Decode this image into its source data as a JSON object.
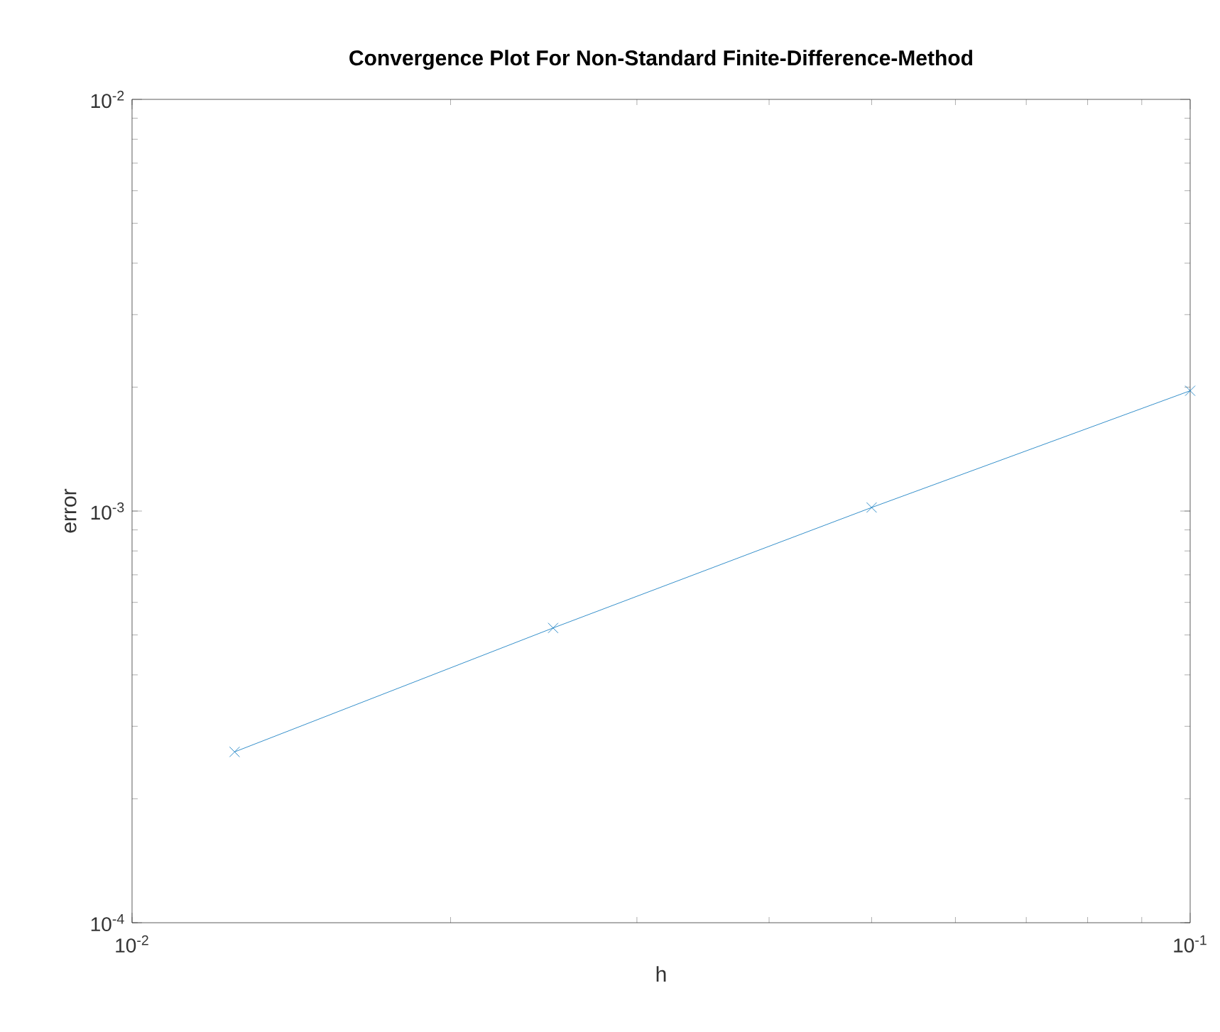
{
  "chart_data": {
    "type": "line",
    "title": "Convergence Plot For Non-Standard Finite-Difference-Method",
    "xlabel": "h",
    "ylabel": "error",
    "x": [
      0.0125,
      0.025,
      0.05,
      0.1
    ],
    "series": [
      {
        "color": "#0072bd",
        "values": [
          0.00026,
          0.00052,
          0.00102,
          0.00196
        ]
      }
    ],
    "log": "xy",
    "marker": "cross",
    "line_style": "solid",
    "xlim": [
      0.01,
      0.1
    ],
    "ylim": [
      0.0001,
      0.01
    ],
    "xticks": [
      {
        "value": 0.01,
        "label": "10$^{-2}$"
      },
      {
        "value": 0.1,
        "label": "10$^{-1}$"
      }
    ],
    "yticks": [
      {
        "value": 0.0001,
        "label": "10$^{-4}$"
      },
      {
        "value": 0.001,
        "label": "10$^{-3}$"
      },
      {
        "value": 0.01,
        "label": "10$^{-2}$"
      }
    ]
  }
}
